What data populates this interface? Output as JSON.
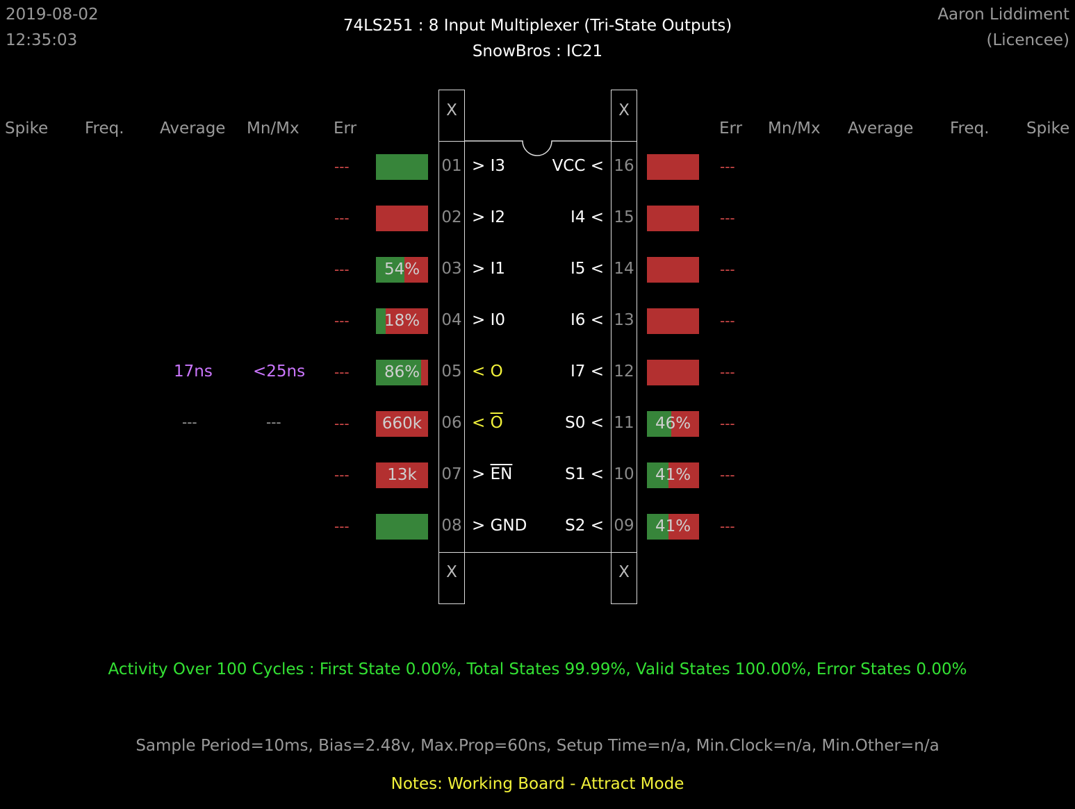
{
  "date": "2019-08-02",
  "time": "12:35:03",
  "author": "Aaron Liddiment",
  "author_role": "(Licencee)",
  "chip_title": "74LS251  :  8 Input Multiplexer (Tri-State Outputs)",
  "chip_location": "SnowBros : IC21",
  "headers": {
    "spike": "Spike",
    "freq": "Freq.",
    "average": "Average",
    "mnmx": "Mn/Mx",
    "err": "Err"
  },
  "pin_x": "X",
  "dash": "---",
  "colors": {
    "high": "#37853a",
    "low": "#b33030",
    "accent": "#f2f23a",
    "timing": "#cc77ff",
    "activity": "#34e234"
  },
  "left_pins": [
    {
      "num": "01",
      "label": "> I3",
      "green": 1.0,
      "text": "",
      "err": "---"
    },
    {
      "num": "02",
      "label": "> I2",
      "green": 0.0,
      "text": "",
      "err": "---"
    },
    {
      "num": "03",
      "label": "> I1",
      "green": 0.54,
      "text": "54%",
      "err": "---"
    },
    {
      "num": "04",
      "label": "> I0",
      "green": 0.18,
      "text": "18%",
      "err": "---"
    },
    {
      "num": "05",
      "label_prefix": "< ",
      "label_main": "O",
      "green": 0.86,
      "text": "86%",
      "err": "---",
      "average": "17ns",
      "mnmx": "<25ns"
    },
    {
      "num": "06",
      "label_prefix": "< ",
      "label_main": "O",
      "green": 0.0,
      "text": "660k",
      "err": "---",
      "average": "---",
      "mnmx": "---"
    },
    {
      "num": "07",
      "label_prefix": "> ",
      "label_main": "EN",
      "green": 0.0,
      "text": "13k",
      "err": "---"
    },
    {
      "num": "08",
      "label": "> GND",
      "green": 1.0,
      "text": "",
      "err": "---"
    }
  ],
  "right_pins": [
    {
      "num": "16",
      "label": "VCC <",
      "green": 0.0,
      "text": "",
      "err": "---"
    },
    {
      "num": "15",
      "label": "I4 <",
      "green": 0.0,
      "text": "",
      "err": "---"
    },
    {
      "num": "14",
      "label": "I5 <",
      "green": 0.0,
      "text": "",
      "err": "---"
    },
    {
      "num": "13",
      "label": "I6 <",
      "green": 0.0,
      "text": "",
      "err": "---"
    },
    {
      "num": "12",
      "label": "I7 <",
      "green": 0.0,
      "text": "",
      "err": "---"
    },
    {
      "num": "11",
      "label": "S0 <",
      "green": 0.46,
      "text": "46%",
      "err": "---"
    },
    {
      "num": "10",
      "label": "S1 <",
      "green": 0.41,
      "text": "41%",
      "err": "---"
    },
    {
      "num": "09",
      "label": "S2 <",
      "green": 0.41,
      "text": "41%",
      "err": "---"
    }
  ],
  "activity": "Activity Over 100 Cycles  :  First State 0.00%,  Total States 99.99%,  Valid States 100.00%,  Error States 0.00%",
  "params": "Sample Period=10ms,  Bias=2.48v,  Max.Prop=60ns,  Setup Time=n/a,  Min.Clock=n/a,  Min.Other=n/a",
  "notes": "Notes:  Working Board - Attract Mode"
}
